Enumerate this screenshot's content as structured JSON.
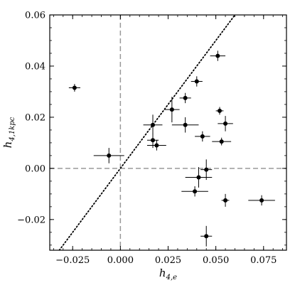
{
  "chart_data": {
    "type": "scatter",
    "title": "",
    "xlabel": "h_{4,e}",
    "ylabel": "h_{4,1kpc}",
    "xlim": [
      -0.037,
      0.087
    ],
    "ylim": [
      -0.032,
      0.06
    ],
    "x_ticks": [
      -0.025,
      0.0,
      0.025,
      0.05,
      0.075
    ],
    "x_tick_labels": [
      "−0.025",
      "0.000",
      "0.025",
      "0.050",
      "0.075"
    ],
    "y_ticks": [
      -0.02,
      0.0,
      0.02,
      0.04,
      0.06
    ],
    "y_tick_labels": [
      "−0.02",
      "0.00",
      "0.02",
      "0.04",
      "0.06"
    ],
    "grid": false,
    "legend": "none",
    "reference_lines": [
      {
        "kind": "vertical",
        "x": 0.0,
        "style": "dashed",
        "color": "#999999"
      },
      {
        "kind": "horizontal",
        "y": 0.0,
        "style": "dashed",
        "color": "#999999"
      },
      {
        "kind": "one-to-one",
        "slope": 1,
        "intercept": 0,
        "style": "dotted",
        "color": "#000000"
      }
    ],
    "point_color": "#000000",
    "points": [
      {
        "x": -0.024,
        "y": 0.0315,
        "xerr": 0.003,
        "yerr": 0.0015
      },
      {
        "x": -0.006,
        "y": 0.005,
        "xerr": 0.008,
        "yerr": 0.003
      },
      {
        "x": 0.017,
        "y": 0.017,
        "xerr": 0.005,
        "yerr": 0.004
      },
      {
        "x": 0.017,
        "y": 0.011,
        "xerr": 0.003,
        "yerr": 0.003
      },
      {
        "x": 0.019,
        "y": 0.009,
        "xerr": 0.005,
        "yerr": 0.002
      },
      {
        "x": 0.027,
        "y": 0.023,
        "xerr": 0.004,
        "yerr": 0.005
      },
      {
        "x": 0.034,
        "y": 0.0275,
        "xerr": 0.003,
        "yerr": 0.002
      },
      {
        "x": 0.034,
        "y": 0.017,
        "xerr": 0.007,
        "yerr": 0.003
      },
      {
        "x": 0.04,
        "y": 0.034,
        "xerr": 0.003,
        "yerr": 0.002
      },
      {
        "x": 0.043,
        "y": 0.0125,
        "xerr": 0.004,
        "yerr": 0.002
      },
      {
        "x": 0.051,
        "y": 0.044,
        "xerr": 0.004,
        "yerr": 0.002
      },
      {
        "x": 0.052,
        "y": 0.0225,
        "xerr": 0.002,
        "yerr": 0.0015
      },
      {
        "x": 0.053,
        "y": 0.0105,
        "xerr": 0.005,
        "yerr": 0.0015
      },
      {
        "x": 0.055,
        "y": 0.0175,
        "xerr": 0.004,
        "yerr": 0.003
      },
      {
        "x": 0.041,
        "y": -0.0035,
        "xerr": 0.007,
        "yerr": 0.004
      },
      {
        "x": 0.045,
        "y": -0.0005,
        "xerr": 0.003,
        "yerr": 0.004
      },
      {
        "x": 0.039,
        "y": -0.009,
        "xerr": 0.007,
        "yerr": 0.002
      },
      {
        "x": 0.055,
        "y": -0.0125,
        "xerr": 0.002,
        "yerr": 0.0025
      },
      {
        "x": 0.074,
        "y": -0.0125,
        "xerr": 0.007,
        "yerr": 0.002
      },
      {
        "x": 0.045,
        "y": -0.0265,
        "xerr": 0.003,
        "yerr": 0.004
      }
    ]
  }
}
